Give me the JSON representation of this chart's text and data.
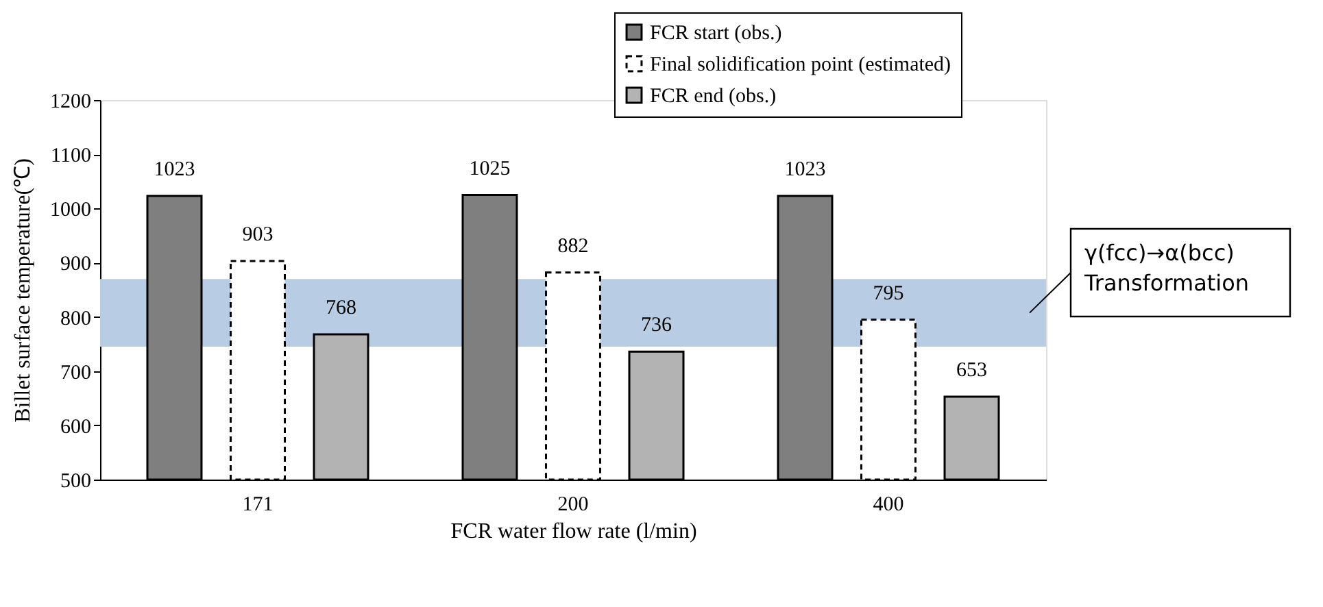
{
  "chart_data": {
    "type": "bar",
    "xlabel": "FCR water flow rate (l/min)",
    "ylabel": "Billet surface temperature(℃)",
    "categories": [
      "171",
      "200",
      "400"
    ],
    "series": [
      {
        "name": "FCR start (obs.)",
        "color": "#7f7f7f",
        "values": [
          1023,
          1025,
          1023
        ]
      },
      {
        "name": "Final solidification point (estimated)",
        "color": "#ffffff",
        "line_style": "dashed",
        "values": [
          903,
          882,
          795
        ]
      },
      {
        "name": "FCR end (obs.)",
        "color": "#b3b3b3",
        "values": [
          768,
          736,
          653
        ]
      }
    ],
    "ylim": [
      500,
      1200
    ],
    "yticks": [
      500,
      600,
      700,
      800,
      900,
      1000,
      1100,
      1200
    ],
    "bands": [
      {
        "axis": "y",
        "from": 745,
        "to": 870,
        "label": "γ(fcc)→α(bcc)\nTransformation",
        "color": "#b8cce4"
      }
    ],
    "data_labels": true,
    "grid": false,
    "legend": "top right"
  }
}
